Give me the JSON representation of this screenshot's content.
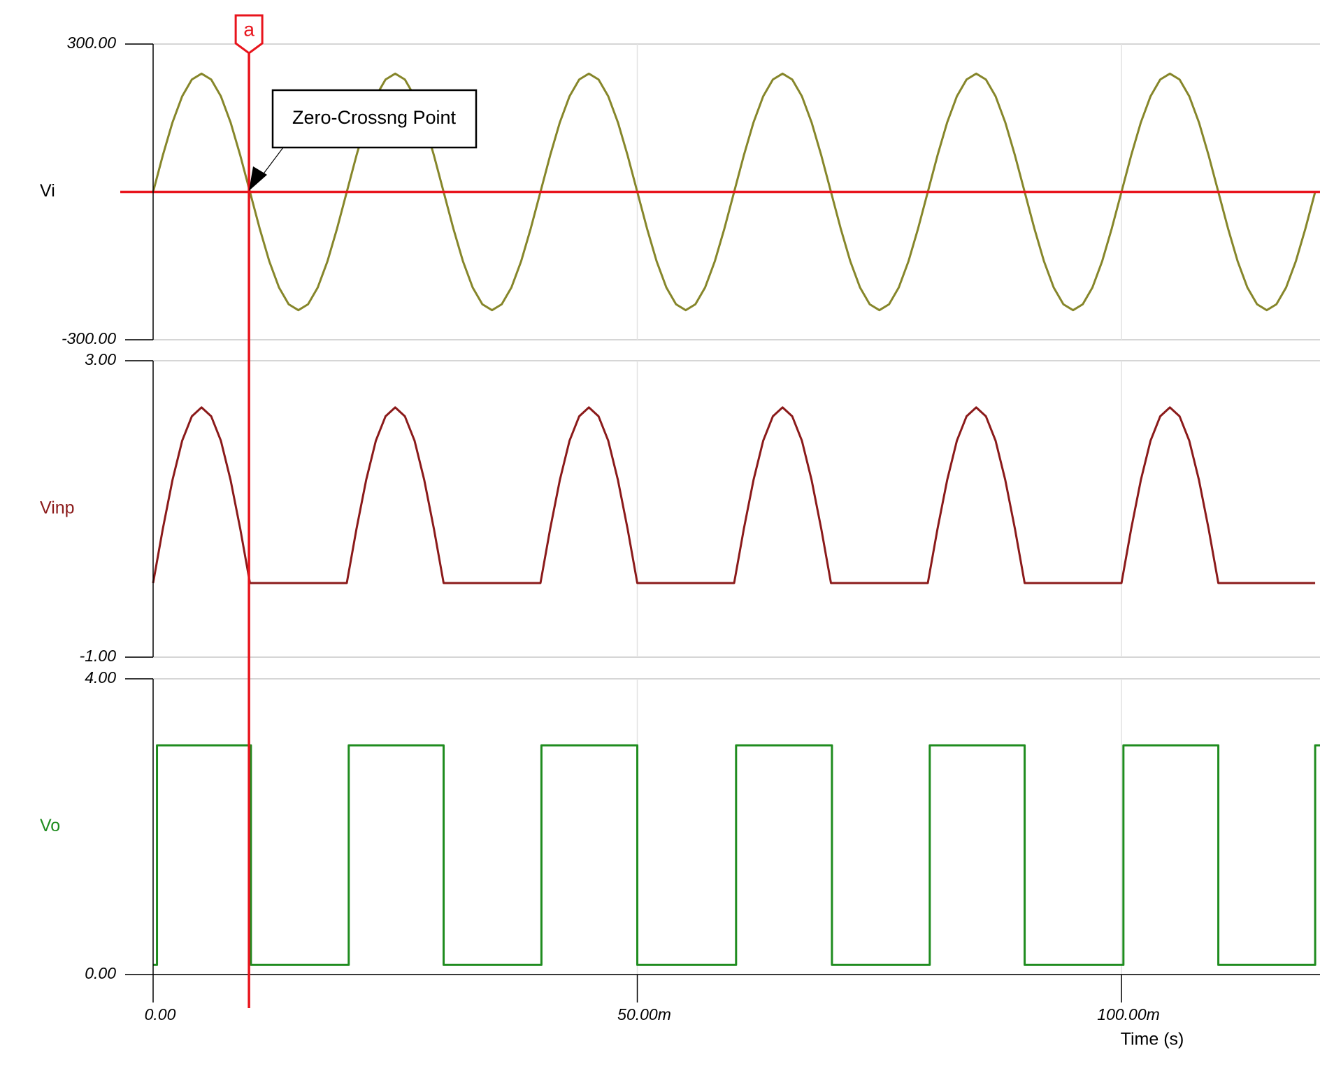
{
  "chart_data": [
    {
      "type": "line",
      "xlim": [
        0,
        0.1205
      ],
      "ylim": [
        -300,
        300
      ],
      "yticks": [
        {
          "value": -300,
          "label": "-300.00"
        },
        {
          "value": 300,
          "label": "300.00"
        }
      ],
      "reference_line": 0,
      "x": [
        0,
        0.001,
        0.002,
        0.003,
        0.004,
        0.005,
        0.006,
        0.007,
        0.008,
        0.009,
        0.01,
        0.011,
        0.012,
        0.013,
        0.014,
        0.015,
        0.016,
        0.017,
        0.018,
        0.019,
        0.02,
        0.021,
        0.022,
        0.023,
        0.024,
        0.025,
        0.026,
        0.027,
        0.028,
        0.029,
        0.03,
        0.031,
        0.032,
        0.033,
        0.034,
        0.035,
        0.036,
        0.037,
        0.038,
        0.039,
        0.04,
        0.041,
        0.042,
        0.043,
        0.044,
        0.045,
        0.046,
        0.047,
        0.048,
        0.049,
        0.05,
        0.051,
        0.052,
        0.053,
        0.054,
        0.055,
        0.056,
        0.057,
        0.058,
        0.059,
        0.06,
        0.061,
        0.062,
        0.063,
        0.064,
        0.065,
        0.066,
        0.067,
        0.068,
        0.069,
        0.07,
        0.071,
        0.072,
        0.073,
        0.074,
        0.075,
        0.076,
        0.077,
        0.078,
        0.079,
        0.08,
        0.081,
        0.082,
        0.083,
        0.084,
        0.085,
        0.086,
        0.087,
        0.088,
        0.089,
        0.09,
        0.091,
        0.092,
        0.093,
        0.094,
        0.095,
        0.096,
        0.097,
        0.098,
        0.099,
        0.1,
        0.101,
        0.102,
        0.103,
        0.104,
        0.105,
        0.106,
        0.107,
        0.108,
        0.109,
        0.11,
        0.111,
        0.112,
        0.113,
        0.114,
        0.115,
        0.116,
        0.117,
        0.118,
        0.119,
        0.12
      ],
      "series": [
        {
          "name": "Vi",
          "color": "#86862a",
          "label_color": "#000000",
          "values": [
            0,
            74,
            141,
            194,
            228,
            240,
            228,
            194,
            141,
            74,
            0,
            -74,
            -141,
            -194,
            -228,
            -240,
            -228,
            -194,
            -141,
            -74,
            0,
            74,
            141,
            194,
            228,
            240,
            228,
            194,
            141,
            74,
            0,
            -74,
            -141,
            -194,
            -228,
            -240,
            -228,
            -194,
            -141,
            -74,
            0,
            74,
            141,
            194,
            228,
            240,
            228,
            194,
            141,
            74,
            0,
            -74,
            -141,
            -194,
            -228,
            -240,
            -228,
            -194,
            -141,
            -74,
            0,
            74,
            141,
            194,
            228,
            240,
            228,
            194,
            141,
            74,
            0,
            -74,
            -141,
            -194,
            -228,
            -240,
            -228,
            -194,
            -141,
            -74,
            0,
            74,
            141,
            194,
            228,
            240,
            228,
            194,
            141,
            74,
            0,
            -74,
            -141,
            -194,
            -228,
            -240,
            -228,
            -194,
            -141,
            -74,
            0,
            74,
            141,
            194,
            228,
            240,
            228,
            194,
            141,
            74,
            0,
            -74,
            -141,
            -194,
            -228,
            -240,
            -228,
            -194,
            -141,
            -74,
            0
          ]
        }
      ]
    },
    {
      "type": "line",
      "xlim": [
        0,
        0.1205
      ],
      "ylim": [
        -1,
        3
      ],
      "yticks": [
        {
          "value": -1,
          "label": "-1.00"
        },
        {
          "value": 3,
          "label": "3.00"
        }
      ],
      "x": [
        0,
        0.001,
        0.002,
        0.003,
        0.004,
        0.005,
        0.006,
        0.007,
        0.008,
        0.009,
        0.01,
        0.011,
        0.012,
        0.013,
        0.014,
        0.015,
        0.016,
        0.017,
        0.018,
        0.019,
        0.02,
        0.021,
        0.022,
        0.023,
        0.024,
        0.025,
        0.026,
        0.027,
        0.028,
        0.029,
        0.03,
        0.031,
        0.032,
        0.033,
        0.034,
        0.035,
        0.036,
        0.037,
        0.038,
        0.039,
        0.04,
        0.041,
        0.042,
        0.043,
        0.044,
        0.045,
        0.046,
        0.047,
        0.048,
        0.049,
        0.05,
        0.051,
        0.052,
        0.053,
        0.054,
        0.055,
        0.056,
        0.057,
        0.058,
        0.059,
        0.06,
        0.061,
        0.062,
        0.063,
        0.064,
        0.065,
        0.066,
        0.067,
        0.068,
        0.069,
        0.07,
        0.071,
        0.072,
        0.073,
        0.074,
        0.075,
        0.076,
        0.077,
        0.078,
        0.079,
        0.08,
        0.081,
        0.082,
        0.083,
        0.084,
        0.085,
        0.086,
        0.087,
        0.088,
        0.089,
        0.09,
        0.091,
        0.092,
        0.093,
        0.094,
        0.095,
        0.096,
        0.097,
        0.098,
        0.099,
        0.1,
        0.101,
        0.102,
        0.103,
        0.104,
        0.105,
        0.106,
        0.107,
        0.108,
        0.109,
        0.11,
        0.111,
        0.112,
        0.113,
        0.114,
        0.115,
        0.116,
        0.117,
        0.118,
        0.119,
        0.12
      ],
      "series": [
        {
          "name": "Vinp",
          "color": "#8b1a1a",
          "label_color": "#8b1a1a",
          "values": [
            0,
            0.73,
            1.39,
            1.92,
            2.25,
            2.37,
            2.25,
            1.92,
            1.39,
            0.73,
            0,
            0,
            0,
            0,
            0,
            0,
            0,
            0,
            0,
            0,
            0,
            0.73,
            1.39,
            1.92,
            2.25,
            2.37,
            2.25,
            1.92,
            1.39,
            0.73,
            0,
            0,
            0,
            0,
            0,
            0,
            0,
            0,
            0,
            0,
            0,
            0.73,
            1.39,
            1.92,
            2.25,
            2.37,
            2.25,
            1.92,
            1.39,
            0.73,
            0,
            0,
            0,
            0,
            0,
            0,
            0,
            0,
            0,
            0,
            0,
            0.73,
            1.39,
            1.92,
            2.25,
            2.37,
            2.25,
            1.92,
            1.39,
            0.73,
            0,
            0,
            0,
            0,
            0,
            0,
            0,
            0,
            0,
            0,
            0,
            0.73,
            1.39,
            1.92,
            2.25,
            2.37,
            2.25,
            1.92,
            1.39,
            0.73,
            0,
            0,
            0,
            0,
            0,
            0,
            0,
            0,
            0,
            0,
            0,
            0.73,
            1.39,
            1.92,
            2.25,
            2.37,
            2.25,
            1.92,
            1.39,
            0.73,
            0,
            0,
            0,
            0,
            0,
            0,
            0,
            0,
            0,
            0,
            0
          ]
        }
      ]
    },
    {
      "type": "line",
      "xlim": [
        0,
        0.1205
      ],
      "ylim": [
        0,
        4
      ],
      "yticks": [
        {
          "value": 0,
          "label": "0.00"
        },
        {
          "value": 4,
          "label": "4.00"
        }
      ],
      "xticks": [
        {
          "value": 0,
          "label": "0.00"
        },
        {
          "value": 0.05,
          "label": "50.00m"
        },
        {
          "value": 0.1,
          "label": "100.00m"
        }
      ],
      "xlabel": "Time (s)",
      "x": [
        0,
        0.0004,
        0.0004,
        0.0101,
        0.0101,
        0.0202,
        0.0202,
        0.03,
        0.03,
        0.0401,
        0.0401,
        0.05,
        0.05,
        0.0602,
        0.0602,
        0.0701,
        0.0701,
        0.0802,
        0.0802,
        0.09,
        0.09,
        0.1002,
        0.1002,
        0.11,
        0.11,
        0.12,
        0.12,
        0.1205
      ],
      "series": [
        {
          "name": "Vo",
          "color": "#1f8c1f",
          "label_color": "#1f8c1f",
          "values": [
            0.13,
            0.13,
            3.1,
            3.1,
            0.13,
            0.13,
            3.1,
            3.1,
            0.13,
            0.13,
            3.1,
            3.1,
            0.13,
            0.13,
            3.1,
            3.1,
            0.13,
            0.13,
            3.1,
            3.1,
            0.13,
            0.13,
            3.1,
            3.1,
            0.13,
            0.13,
            3.1,
            3.1
          ]
        }
      ]
    }
  ],
  "cursor": {
    "label": "a",
    "x": 0.0099,
    "color": "#e8141c"
  },
  "annotation": "Zero-Crossng Point"
}
